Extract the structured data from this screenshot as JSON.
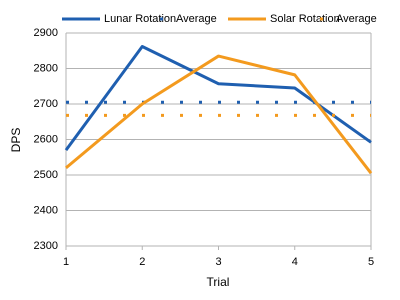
{
  "chart_data": {
    "type": "line",
    "x": [
      1,
      2,
      3,
      4,
      5
    ],
    "xlim": [
      1,
      5
    ],
    "xticks": [
      1,
      2,
      3,
      4,
      5
    ],
    "ylim": [
      2300,
      2900
    ],
    "yticks": [
      2300,
      2400,
      2500,
      2600,
      2700,
      2800,
      2900
    ],
    "xlabel": "Trial",
    "ylabel": "DPS",
    "grid": true,
    "legend": "top",
    "series": [
      {
        "name": "Lunar Rotation",
        "color": "#1f5fb0",
        "line_style": "solid",
        "values": [
          2570,
          2862,
          2757,
          2745,
          2592
        ]
      },
      {
        "name": "Average",
        "color": "#1f5fb0",
        "line_style": "dotted",
        "values": [
          2705,
          2705,
          2705,
          2705,
          2705
        ]
      },
      {
        "name": "Solar Rotation",
        "color": "#f39a1e",
        "line_style": "solid",
        "values": [
          2520,
          2700,
          2835,
          2782,
          2505
        ]
      },
      {
        "name": "Average",
        "color": "#f39a1e",
        "line_style": "dotted",
        "values": [
          2668,
          2668,
          2668,
          2668,
          2668
        ]
      }
    ]
  }
}
